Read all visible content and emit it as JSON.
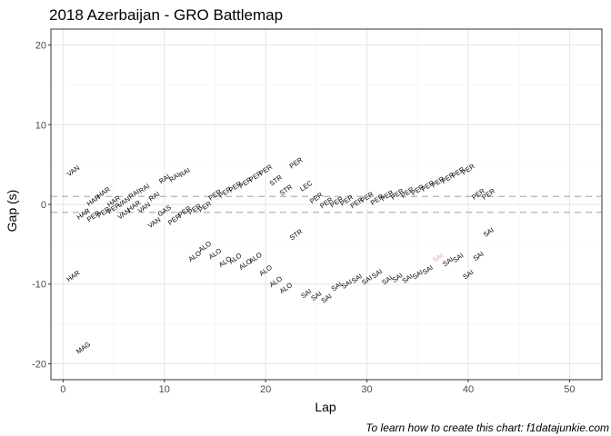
{
  "chart_data": {
    "type": "scatter",
    "title": "2018 Azerbaijan - GRO Battlemap",
    "xlabel": "Lap",
    "ylabel": "Gap (s)",
    "caption": "To learn how to create this chart: f1datajunkie.com",
    "xlim": [
      -1.2,
      53.2
    ],
    "ylim": [
      -22,
      22
    ],
    "xticks": [
      0,
      10,
      20,
      30,
      40,
      50
    ],
    "yticks": [
      -20,
      -10,
      0,
      10,
      20
    ],
    "grid": true,
    "reference_lines": [
      1,
      -1
    ],
    "points": [
      {
        "x": 1,
        "y": 4.2,
        "label": "VAN"
      },
      {
        "x": 1,
        "y": -9,
        "label": "HAR"
      },
      {
        "x": 2,
        "y": -1.2,
        "label": "HAR"
      },
      {
        "x": 2,
        "y": -18,
        "label": "MAG"
      },
      {
        "x": 3,
        "y": -1.5,
        "label": "PER"
      },
      {
        "x": 3,
        "y": 0.5,
        "label": "HAR"
      },
      {
        "x": 4,
        "y": -1.0,
        "label": "PER"
      },
      {
        "x": 4,
        "y": 1.5,
        "label": "HAR"
      },
      {
        "x": 5,
        "y": -0.5,
        "label": "PER"
      },
      {
        "x": 5,
        "y": 0.4,
        "label": "HAR"
      },
      {
        "x": 6,
        "y": -1.2,
        "label": "VAN"
      },
      {
        "x": 6,
        "y": 0.3,
        "label": "VAN"
      },
      {
        "x": 7,
        "y": -0.2,
        "label": "HAR"
      },
      {
        "x": 7,
        "y": 1.3,
        "label": "RAI"
      },
      {
        "x": 8,
        "y": -0.4,
        "label": "VAN"
      },
      {
        "x": 8,
        "y": 2.0,
        "label": "RAI"
      },
      {
        "x": 9,
        "y": -2.3,
        "label": "VAN"
      },
      {
        "x": 9,
        "y": 1.0,
        "label": "RAI"
      },
      {
        "x": 10,
        "y": -0.8,
        "label": "GAS"
      },
      {
        "x": 10,
        "y": 3.2,
        "label": "RAI"
      },
      {
        "x": 11,
        "y": -1.9,
        "label": "PER"
      },
      {
        "x": 11,
        "y": 3.4,
        "label": "RAI"
      },
      {
        "x": 12,
        "y": -0.9,
        "label": "PER"
      },
      {
        "x": 12,
        "y": 4.0,
        "label": "RAI"
      },
      {
        "x": 13,
        "y": -0.6,
        "label": "PER"
      },
      {
        "x": 13,
        "y": -6.5,
        "label": "ALO"
      },
      {
        "x": 14,
        "y": -0.3,
        "label": "PER"
      },
      {
        "x": 14,
        "y": -5.3,
        "label": "ALO"
      },
      {
        "x": 15,
        "y": 1.2,
        "label": "PER"
      },
      {
        "x": 15,
        "y": -6.2,
        "label": "ALO"
      },
      {
        "x": 16,
        "y": 1.5,
        "label": "PER"
      },
      {
        "x": 16,
        "y": -7.2,
        "label": "ALO"
      },
      {
        "x": 17,
        "y": 2.2,
        "label": "PER"
      },
      {
        "x": 17,
        "y": -6.8,
        "label": "ALO"
      },
      {
        "x": 18,
        "y": 2.7,
        "label": "PER"
      },
      {
        "x": 18,
        "y": -7.5,
        "label": "ALO"
      },
      {
        "x": 19,
        "y": 3.5,
        "label": "PER"
      },
      {
        "x": 19,
        "y": -6.7,
        "label": "ALO"
      },
      {
        "x": 20,
        "y": 4.3,
        "label": "PER"
      },
      {
        "x": 20,
        "y": -8.3,
        "label": "ALO"
      },
      {
        "x": 21,
        "y": 3.0,
        "label": "STR"
      },
      {
        "x": 21,
        "y": -9.7,
        "label": "ALO"
      },
      {
        "x": 22,
        "y": 1.8,
        "label": "STR"
      },
      {
        "x": 22,
        "y": -10.5,
        "label": "ALO"
      },
      {
        "x": 23,
        "y": 5.2,
        "label": "PER"
      },
      {
        "x": 23,
        "y": -3.8,
        "label": "STR"
      },
      {
        "x": 24,
        "y": 2.3,
        "label": "LEC"
      },
      {
        "x": 24,
        "y": -11.2,
        "label": "SAI"
      },
      {
        "x": 25,
        "y": 0.8,
        "label": "PER"
      },
      {
        "x": 25,
        "y": -11.5,
        "label": "SAI"
      },
      {
        "x": 26,
        "y": 0.2,
        "label": "PER"
      },
      {
        "x": 26,
        "y": -11.8,
        "label": "SAI"
      },
      {
        "x": 27,
        "y": 0.3,
        "label": "PER"
      },
      {
        "x": 27,
        "y": -10.3,
        "label": "SAI"
      },
      {
        "x": 28,
        "y": 0.5,
        "label": "PER"
      },
      {
        "x": 28,
        "y": -10.0,
        "label": "SAI"
      },
      {
        "x": 29,
        "y": 0.2,
        "label": "PER"
      },
      {
        "x": 29,
        "y": -9.3,
        "label": "SAI"
      },
      {
        "x": 30,
        "y": 0.9,
        "label": "PER"
      },
      {
        "x": 30,
        "y": -9.5,
        "label": "SAI"
      },
      {
        "x": 31,
        "y": 0.6,
        "label": "PER"
      },
      {
        "x": 31,
        "y": -8.7,
        "label": "SAI"
      },
      {
        "x": 32,
        "y": 1.1,
        "label": "PER"
      },
      {
        "x": 32,
        "y": -9.5,
        "label": "SAI"
      },
      {
        "x": 33,
        "y": 1.3,
        "label": "PER"
      },
      {
        "x": 33,
        "y": -9.2,
        "label": "SAI"
      },
      {
        "x": 34,
        "y": 1.5,
        "label": "PER"
      },
      {
        "x": 34,
        "y": -9.3,
        "label": "SAI"
      },
      {
        "x": 35,
        "y": 1.8,
        "label": "PER"
      },
      {
        "x": 35,
        "y": -8.8,
        "label": "SAI"
      },
      {
        "x": 36,
        "y": 2.3,
        "label": "PER"
      },
      {
        "x": 36,
        "y": -8.2,
        "label": "SAI"
      },
      {
        "x": 37,
        "y": 2.8,
        "label": "PER"
      },
      {
        "x": 37,
        "y": -6.7,
        "label": "SAI",
        "highlight": true
      },
      {
        "x": 38,
        "y": 3.3,
        "label": "PER"
      },
      {
        "x": 38,
        "y": -7.2,
        "label": "SAI"
      },
      {
        "x": 39,
        "y": 4.0,
        "label": "PER"
      },
      {
        "x": 39,
        "y": -6.7,
        "label": "SAI"
      },
      {
        "x": 40,
        "y": 4.4,
        "label": "PER"
      },
      {
        "x": 40,
        "y": -8.8,
        "label": "SAI"
      },
      {
        "x": 41,
        "y": 1.3,
        "label": "PER"
      },
      {
        "x": 41,
        "y": -6.5,
        "label": "SAI"
      },
      {
        "x": 42,
        "y": 1.3,
        "label": "PER"
      },
      {
        "x": 42,
        "y": -3.5,
        "label": "SAI"
      }
    ]
  }
}
